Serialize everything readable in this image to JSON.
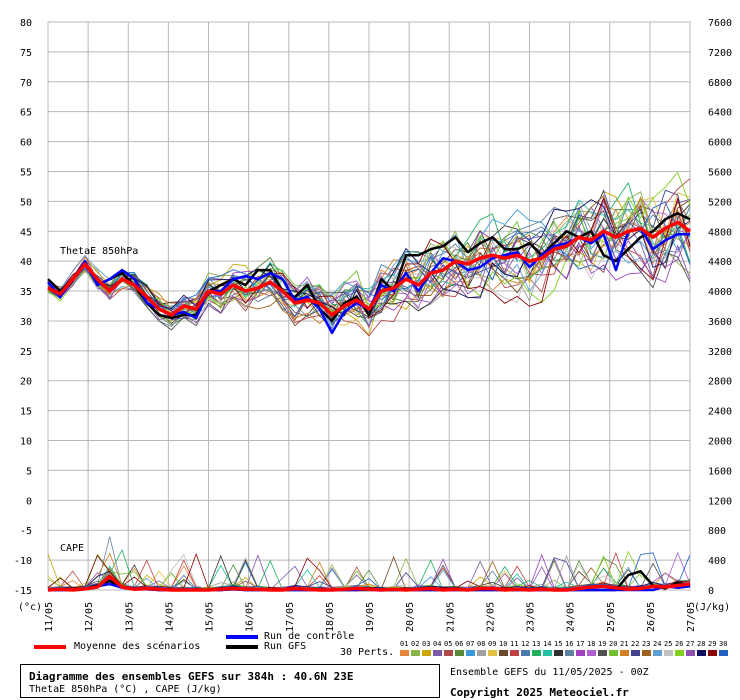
{
  "chart_data": {
    "type": "line",
    "x_labels": [
      "11/05",
      "12/05",
      "13/05",
      "14/05",
      "15/05",
      "16/05",
      "17/05",
      "18/05",
      "19/05",
      "20/05",
      "21/05",
      "22/05",
      "23/05",
      "24/05",
      "25/05",
      "26/05",
      "27/05"
    ],
    "y_left_ticks": [
      80,
      75,
      70,
      65,
      60,
      55,
      50,
      45,
      40,
      35,
      30,
      25,
      20,
      15,
      10,
      5,
      0,
      -5,
      -10,
      -15
    ],
    "y_right_ticks": [
      7600,
      7200,
      6800,
      6400,
      6000,
      5600,
      5200,
      4800,
      4400,
      4000,
      3600,
      3200,
      2800,
      2400,
      2000,
      1600,
      1200,
      800,
      400,
      0
    ],
    "ylim_left": [
      -15,
      80
    ],
    "ylim_right": [
      0,
      7600
    ],
    "left_unit_label": "(°c)",
    "right_unit_label": "(J/kg)",
    "grid": true,
    "series_thetae_label": "ThetaE 850hPa",
    "series_cape_label": "CAPE",
    "thetae_mean": [
      35.5,
      34.5,
      37,
      39.5,
      37,
      35,
      37,
      36,
      34,
      32,
      31,
      32.5,
      32,
      35,
      34.5,
      36,
      35,
      35.5,
      36.5,
      35,
      33,
      33.5,
      33,
      31,
      32.5,
      33.5,
      32,
      35,
      35.5,
      37,
      36,
      38,
      38.5,
      40,
      39.5,
      40.5,
      41,
      40.5,
      41,
      40,
      40.5,
      42,
      42.5,
      44,
      43.5,
      45,
      44,
      45,
      45.5,
      44,
      45.5,
      46.5,
      45
    ],
    "thetae_control": [
      36.5,
      34,
      37,
      40,
      36,
      37,
      38.5,
      37,
      33,
      32,
      31,
      31.5,
      30.5,
      35,
      35,
      37,
      37.5,
      37,
      38,
      37,
      33.5,
      34,
      32,
      28,
      31.5,
      33,
      32,
      36,
      35,
      38,
      35,
      38,
      40.5,
      40,
      38.5,
      39,
      40.5,
      41,
      41.5,
      39,
      41,
      42.5,
      43,
      44,
      43,
      44.5,
      38.5,
      45,
      45.5,
      42,
      43.5,
      44.5,
      44.5
    ],
    "thetae_gfs": [
      37,
      35,
      37,
      40,
      36,
      37,
      38,
      36,
      33,
      31,
      30.5,
      31,
      31,
      35,
      36,
      37,
      36,
      38.5,
      38.5,
      35,
      34,
      36,
      32,
      30,
      33,
      34,
      31,
      37,
      35,
      41,
      41,
      42,
      42.5,
      44,
      41.5,
      43,
      44,
      42,
      42,
      43,
      41,
      43,
      45,
      44,
      45,
      41,
      40,
      42,
      44,
      45,
      47,
      48,
      47
    ],
    "cape_mean_jkg": [
      0,
      10,
      0,
      15,
      40,
      180,
      40,
      10,
      20,
      10,
      0,
      0,
      0,
      0,
      10,
      20,
      10,
      10,
      0,
      0,
      20,
      10,
      0,
      0,
      10,
      20,
      10,
      0,
      10,
      0,
      10,
      20,
      0,
      10,
      0,
      20,
      20,
      0,
      10,
      0,
      10,
      0,
      0,
      20,
      40,
      50,
      30,
      10,
      20,
      50,
      40,
      60,
      80
    ],
    "cape_control_jkg": [
      0,
      0,
      0,
      20,
      50,
      80,
      30,
      10,
      10,
      0,
      0,
      0,
      0,
      0,
      0,
      10,
      0,
      0,
      0,
      0,
      0,
      0,
      0,
      0,
      0,
      0,
      10,
      0,
      0,
      0,
      0,
      0,
      0,
      0,
      0,
      0,
      0,
      0,
      0,
      0,
      0,
      0,
      0,
      0,
      0,
      0,
      0,
      0,
      0,
      0,
      50,
      30,
      50
    ],
    "cape_gfs_jkg": [
      0,
      0,
      0,
      20,
      60,
      120,
      40,
      10,
      10,
      0,
      0,
      0,
      0,
      0,
      0,
      10,
      0,
      0,
      0,
      0,
      0,
      0,
      0,
      0,
      0,
      0,
      0,
      0,
      0,
      0,
      0,
      0,
      0,
      0,
      0,
      0,
      0,
      0,
      0,
      0,
      0,
      0,
      0,
      0,
      0,
      0,
      0,
      200,
      250,
      60,
      20,
      100,
      60
    ],
    "legend": {
      "mean": "Moyenne des scénarios",
      "control": "Run de contrôle",
      "gfs": "Run GFS",
      "perts": "30 Perts.",
      "mean_color": "#ff0000",
      "control_color": "#0000ff",
      "gfs_color": "#000000"
    },
    "pert_numbers": [
      "01",
      "02",
      "03",
      "04",
      "05",
      "06",
      "07",
      "08",
      "09",
      "10",
      "11",
      "12",
      "13",
      "14",
      "15",
      "16",
      "17",
      "18",
      "19",
      "20",
      "21",
      "22",
      "23",
      "24",
      "25",
      "26",
      "27",
      "28",
      "29",
      "30"
    ],
    "pert_colors": [
      "#e8863a",
      "#8ab34a",
      "#c8a800",
      "#7b5aa8",
      "#b04a4a",
      "#5a8a3a",
      "#3a9ad9",
      "#a0a0a0",
      "#e0c040",
      "#6a4a2a",
      "#c04040",
      "#4a7ab0",
      "#20b060",
      "#20c0a0",
      "#303030",
      "#6080a0",
      "#a040c0",
      "#b060d0",
      "#505050",
      "#70c030",
      "#d08020",
      "#404090",
      "#9c6020",
      "#60a0d0",
      "#c0c0c0",
      "#80d020",
      "#9050b0",
      "#101060",
      "#8b0000",
      "#2060c0"
    ]
  },
  "footer": {
    "title": "Diagramme des ensembles GEFS sur 384h : 40.6N 23E",
    "subtitle": "ThetaE 850hPa (°C) , CAPE (J/kg)",
    "run_info": "Ensemble GEFS du 11/05/2025 - 00Z",
    "copyright": "Copyright 2025 Meteociel.fr"
  }
}
